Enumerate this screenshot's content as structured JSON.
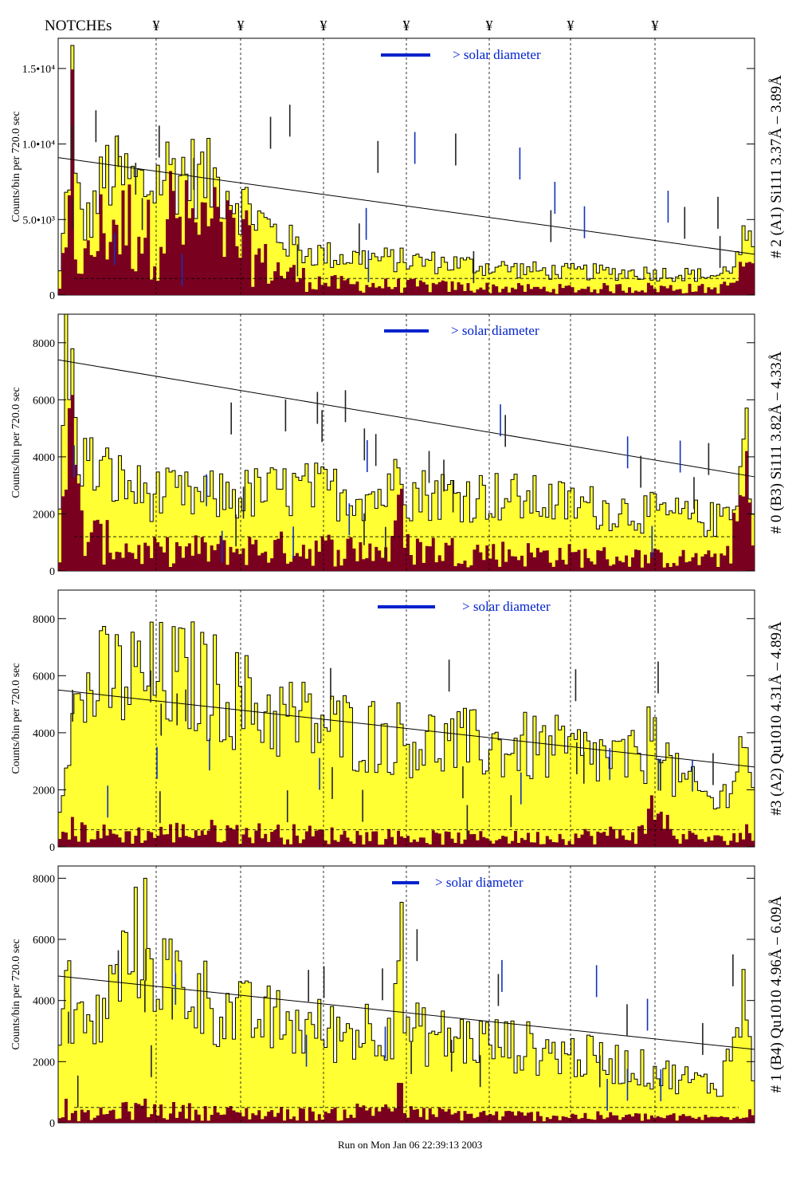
{
  "header": {
    "notches_label": "NOTCHEs",
    "notch_glyph": "¥",
    "notch_count": 7
  },
  "footer": {
    "run_text": "Run on Mon Jan 06 22:39:13 2003"
  },
  "colors": {
    "total": "#ffff33",
    "component": "#7a0020",
    "legend_bar": "#0022cc",
    "legend_text": "#0022cc"
  },
  "chart_data": [
    {
      "type": "bar",
      "panel_label": "# 2 (A1) Si111  3.37Å – 3.89Å",
      "ylabel": "Counts/bin per    720.0 sec",
      "legend": "> solar diameter",
      "ylim": [
        0,
        17000
      ],
      "yticks": [
        {
          "value": 0,
          "label": "0"
        },
        {
          "value": 5000,
          "label": "5.0•10³"
        },
        {
          "value": 10000,
          "label": "1.0•10⁴"
        },
        {
          "value": 15000,
          "label": "1.5•10⁴"
        }
      ],
      "trend": [
        9100,
        2700
      ],
      "base_level": 1100,
      "profile": [
        {
          "x": 0.0,
          "total": 300,
          "component": 200
        },
        {
          "x": 0.015,
          "total": 8000,
          "component": 4000
        },
        {
          "x": 0.02,
          "total": 15400,
          "component": 13000
        },
        {
          "x": 0.025,
          "total": 7000,
          "component": 4000
        },
        {
          "x": 0.04,
          "total": 4500,
          "component": 2500
        },
        {
          "x": 0.07,
          "total": 8200,
          "component": 6300
        },
        {
          "x": 0.13,
          "total": 7200,
          "component": 5600
        },
        {
          "x": 0.16,
          "total": 8600,
          "component": 6600
        },
        {
          "x": 0.24,
          "total": 7400,
          "component": 5400
        },
        {
          "x": 0.3,
          "total": 4600,
          "component": 2400
        },
        {
          "x": 0.35,
          "total": 3000,
          "component": 1400
        },
        {
          "x": 0.4,
          "total": 2600,
          "component": 900
        },
        {
          "x": 0.55,
          "total": 2200,
          "component": 700
        },
        {
          "x": 0.7,
          "total": 1600,
          "component": 500
        },
        {
          "x": 0.85,
          "total": 1500,
          "component": 600
        },
        {
          "x": 0.95,
          "total": 1300,
          "component": 500
        },
        {
          "x": 0.975,
          "total": 2400,
          "component": 1200
        },
        {
          "x": 0.99,
          "total": 4200,
          "component": 3200
        },
        {
          "x": 1.0,
          "total": 2000,
          "component": 1000
        }
      ]
    },
    {
      "type": "bar",
      "panel_label": "# 0 (B3) Si111  3.82Å – 4.33Å",
      "ylabel": "Counts/bin per    720.0 sec",
      "legend": "> solar diameter",
      "ylim": [
        0,
        9000
      ],
      "yticks": [
        {
          "value": 0,
          "label": "0"
        },
        {
          "value": 2000,
          "label": "2000"
        },
        {
          "value": 4000,
          "label": "4000"
        },
        {
          "value": 6000,
          "label": "6000"
        },
        {
          "value": 8000,
          "label": "8000"
        }
      ],
      "trend": [
        7400,
        3300
      ],
      "base_level": 1200,
      "profile": [
        {
          "x": 0.0,
          "total": 200,
          "component": 100
        },
        {
          "x": 0.008,
          "total": 7000,
          "component": 5500
        },
        {
          "x": 0.015,
          "total": 8300,
          "component": 7400
        },
        {
          "x": 0.025,
          "total": 5000,
          "component": 3000
        },
        {
          "x": 0.04,
          "total": 3800,
          "component": 1500
        },
        {
          "x": 0.12,
          "total": 2800,
          "component": 800
        },
        {
          "x": 0.2,
          "total": 2600,
          "component": 900
        },
        {
          "x": 0.35,
          "total": 2900,
          "component": 1000
        },
        {
          "x": 0.48,
          "total": 2700,
          "component": 900
        },
        {
          "x": 0.49,
          "total": 5600,
          "component": 3600
        },
        {
          "x": 0.5,
          "total": 2800,
          "component": 1000
        },
        {
          "x": 0.62,
          "total": 2700,
          "component": 800
        },
        {
          "x": 0.8,
          "total": 2200,
          "component": 600
        },
        {
          "x": 0.95,
          "total": 1800,
          "component": 500
        },
        {
          "x": 0.975,
          "total": 3000,
          "component": 1800
        },
        {
          "x": 0.99,
          "total": 5200,
          "component": 4400
        },
        {
          "x": 1.0,
          "total": 800,
          "component": 300
        }
      ]
    },
    {
      "type": "bar",
      "panel_label": "#3 (A2) Qu1010  4.31Å – 4.89Å",
      "ylabel": "Counts/bin per    720.0 sec",
      "legend": "> solar diameter",
      "ylim": [
        0,
        9000
      ],
      "yticks": [
        {
          "value": 0,
          "label": "0"
        },
        {
          "value": 2000,
          "label": "2000"
        },
        {
          "value": 4000,
          "label": "4000"
        },
        {
          "value": 6000,
          "label": "6000"
        },
        {
          "value": 8000,
          "label": "8000"
        }
      ],
      "trend": [
        5500,
        2800
      ],
      "base_level": 600,
      "profile": [
        {
          "x": 0.0,
          "total": 500,
          "component": 300
        },
        {
          "x": 0.01,
          "total": 4000,
          "component": 800
        },
        {
          "x": 0.05,
          "total": 5800,
          "component": 600
        },
        {
          "x": 0.1,
          "total": 6000,
          "component": 500
        },
        {
          "x": 0.2,
          "total": 6000,
          "component": 700
        },
        {
          "x": 0.3,
          "total": 4800,
          "component": 600
        },
        {
          "x": 0.4,
          "total": 4200,
          "component": 500
        },
        {
          "x": 0.55,
          "total": 3700,
          "component": 400
        },
        {
          "x": 0.7,
          "total": 3500,
          "component": 400
        },
        {
          "x": 0.84,
          "total": 3000,
          "component": 600
        },
        {
          "x": 0.86,
          "total": 5000,
          "component": 2200
        },
        {
          "x": 0.88,
          "total": 2600,
          "component": 500
        },
        {
          "x": 0.95,
          "total": 1500,
          "component": 300
        },
        {
          "x": 0.99,
          "total": 4000,
          "component": 600
        },
        {
          "x": 1.0,
          "total": 1500,
          "component": 300
        }
      ]
    },
    {
      "type": "bar",
      "panel_label": "# 1 (B4) Qu1010 4.96Å – 6.09Å",
      "ylabel": "Counts/bin per    720.0 sec",
      "legend": "> solar diameter",
      "ylim": [
        0,
        8400
      ],
      "yticks": [
        {
          "value": 0,
          "label": "0"
        },
        {
          "value": 2000,
          "label": "2000"
        },
        {
          "value": 4000,
          "label": "4000"
        },
        {
          "value": 6000,
          "label": "6000"
        },
        {
          "value": 8000,
          "label": "8000"
        }
      ],
      "trend": [
        4800,
        2400
      ],
      "base_level": 500,
      "profile": [
        {
          "x": 0.0,
          "total": 2500,
          "component": 400
        },
        {
          "x": 0.01,
          "total": 6500,
          "component": 600
        },
        {
          "x": 0.02,
          "total": 3500,
          "component": 300
        },
        {
          "x": 0.05,
          "total": 3000,
          "component": 300
        },
        {
          "x": 0.1,
          "total": 5500,
          "component": 500
        },
        {
          "x": 0.12,
          "total": 6300,
          "component": 600
        },
        {
          "x": 0.15,
          "total": 5000,
          "component": 500
        },
        {
          "x": 0.25,
          "total": 3600,
          "component": 400
        },
        {
          "x": 0.4,
          "total": 3000,
          "component": 350
        },
        {
          "x": 0.48,
          "total": 3300,
          "component": 700
        },
        {
          "x": 0.49,
          "total": 6800,
          "component": 1200
        },
        {
          "x": 0.5,
          "total": 3000,
          "component": 400
        },
        {
          "x": 0.65,
          "total": 2600,
          "component": 300
        },
        {
          "x": 0.8,
          "total": 2000,
          "component": 250
        },
        {
          "x": 0.95,
          "total": 1200,
          "component": 200
        },
        {
          "x": 0.98,
          "total": 3500,
          "component": 500
        },
        {
          "x": 0.99,
          "total": 4600,
          "component": 600
        },
        {
          "x": 1.0,
          "total": 1200,
          "component": 200
        }
      ]
    }
  ]
}
